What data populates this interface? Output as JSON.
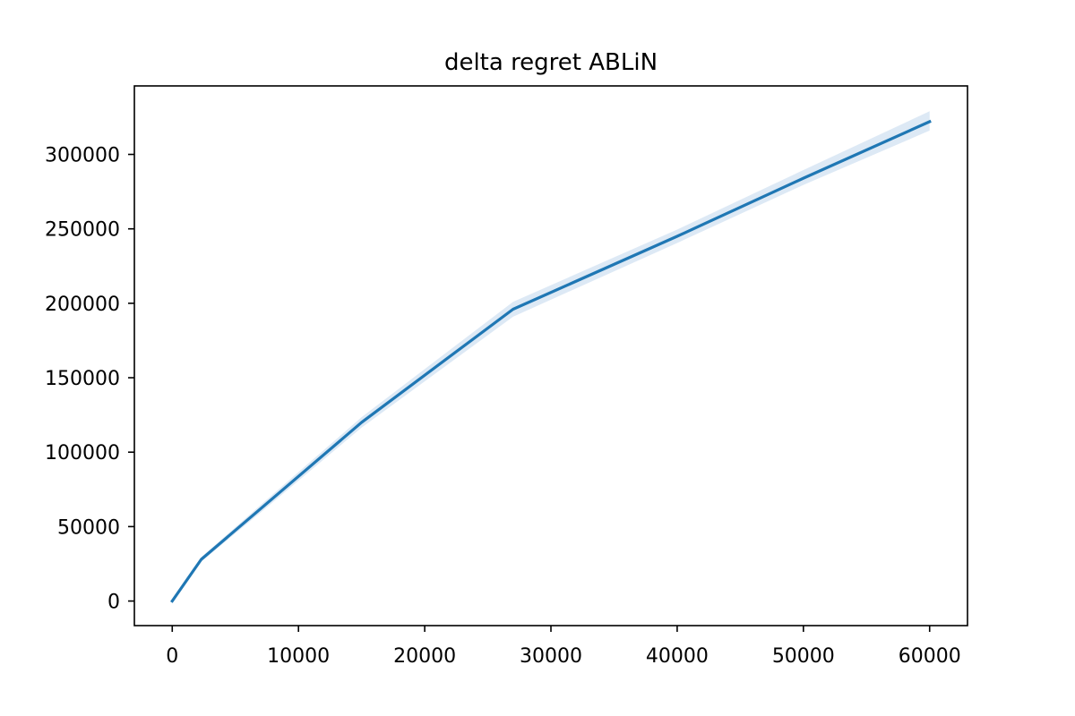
{
  "chart_data": {
    "type": "line",
    "title": "delta regret ABLiN",
    "xlabel": "",
    "ylabel": "",
    "xlim": [
      -3000,
      63000
    ],
    "ylim": [
      -16500,
      346000
    ],
    "x_ticks": [
      0,
      10000,
      20000,
      30000,
      40000,
      50000,
      60000
    ],
    "y_ticks": [
      0,
      50000,
      100000,
      150000,
      200000,
      250000,
      300000
    ],
    "grid": false,
    "series": [
      {
        "name": "",
        "color": "#1f77b4",
        "band_color": "#c6dbef",
        "x": [
          0,
          2300,
          7000,
          15000,
          27000,
          40000,
          50000,
          60000
        ],
        "y": [
          0,
          28000,
          62000,
          120000,
          196000,
          245000,
          284000,
          322000
        ],
        "lower": [
          -500,
          26500,
          59500,
          116500,
          191000,
          240500,
          279500,
          316000
        ],
        "upper": [
          500,
          29500,
          64500,
          123500,
          201000,
          249500,
          289500,
          329000
        ]
      }
    ]
  }
}
